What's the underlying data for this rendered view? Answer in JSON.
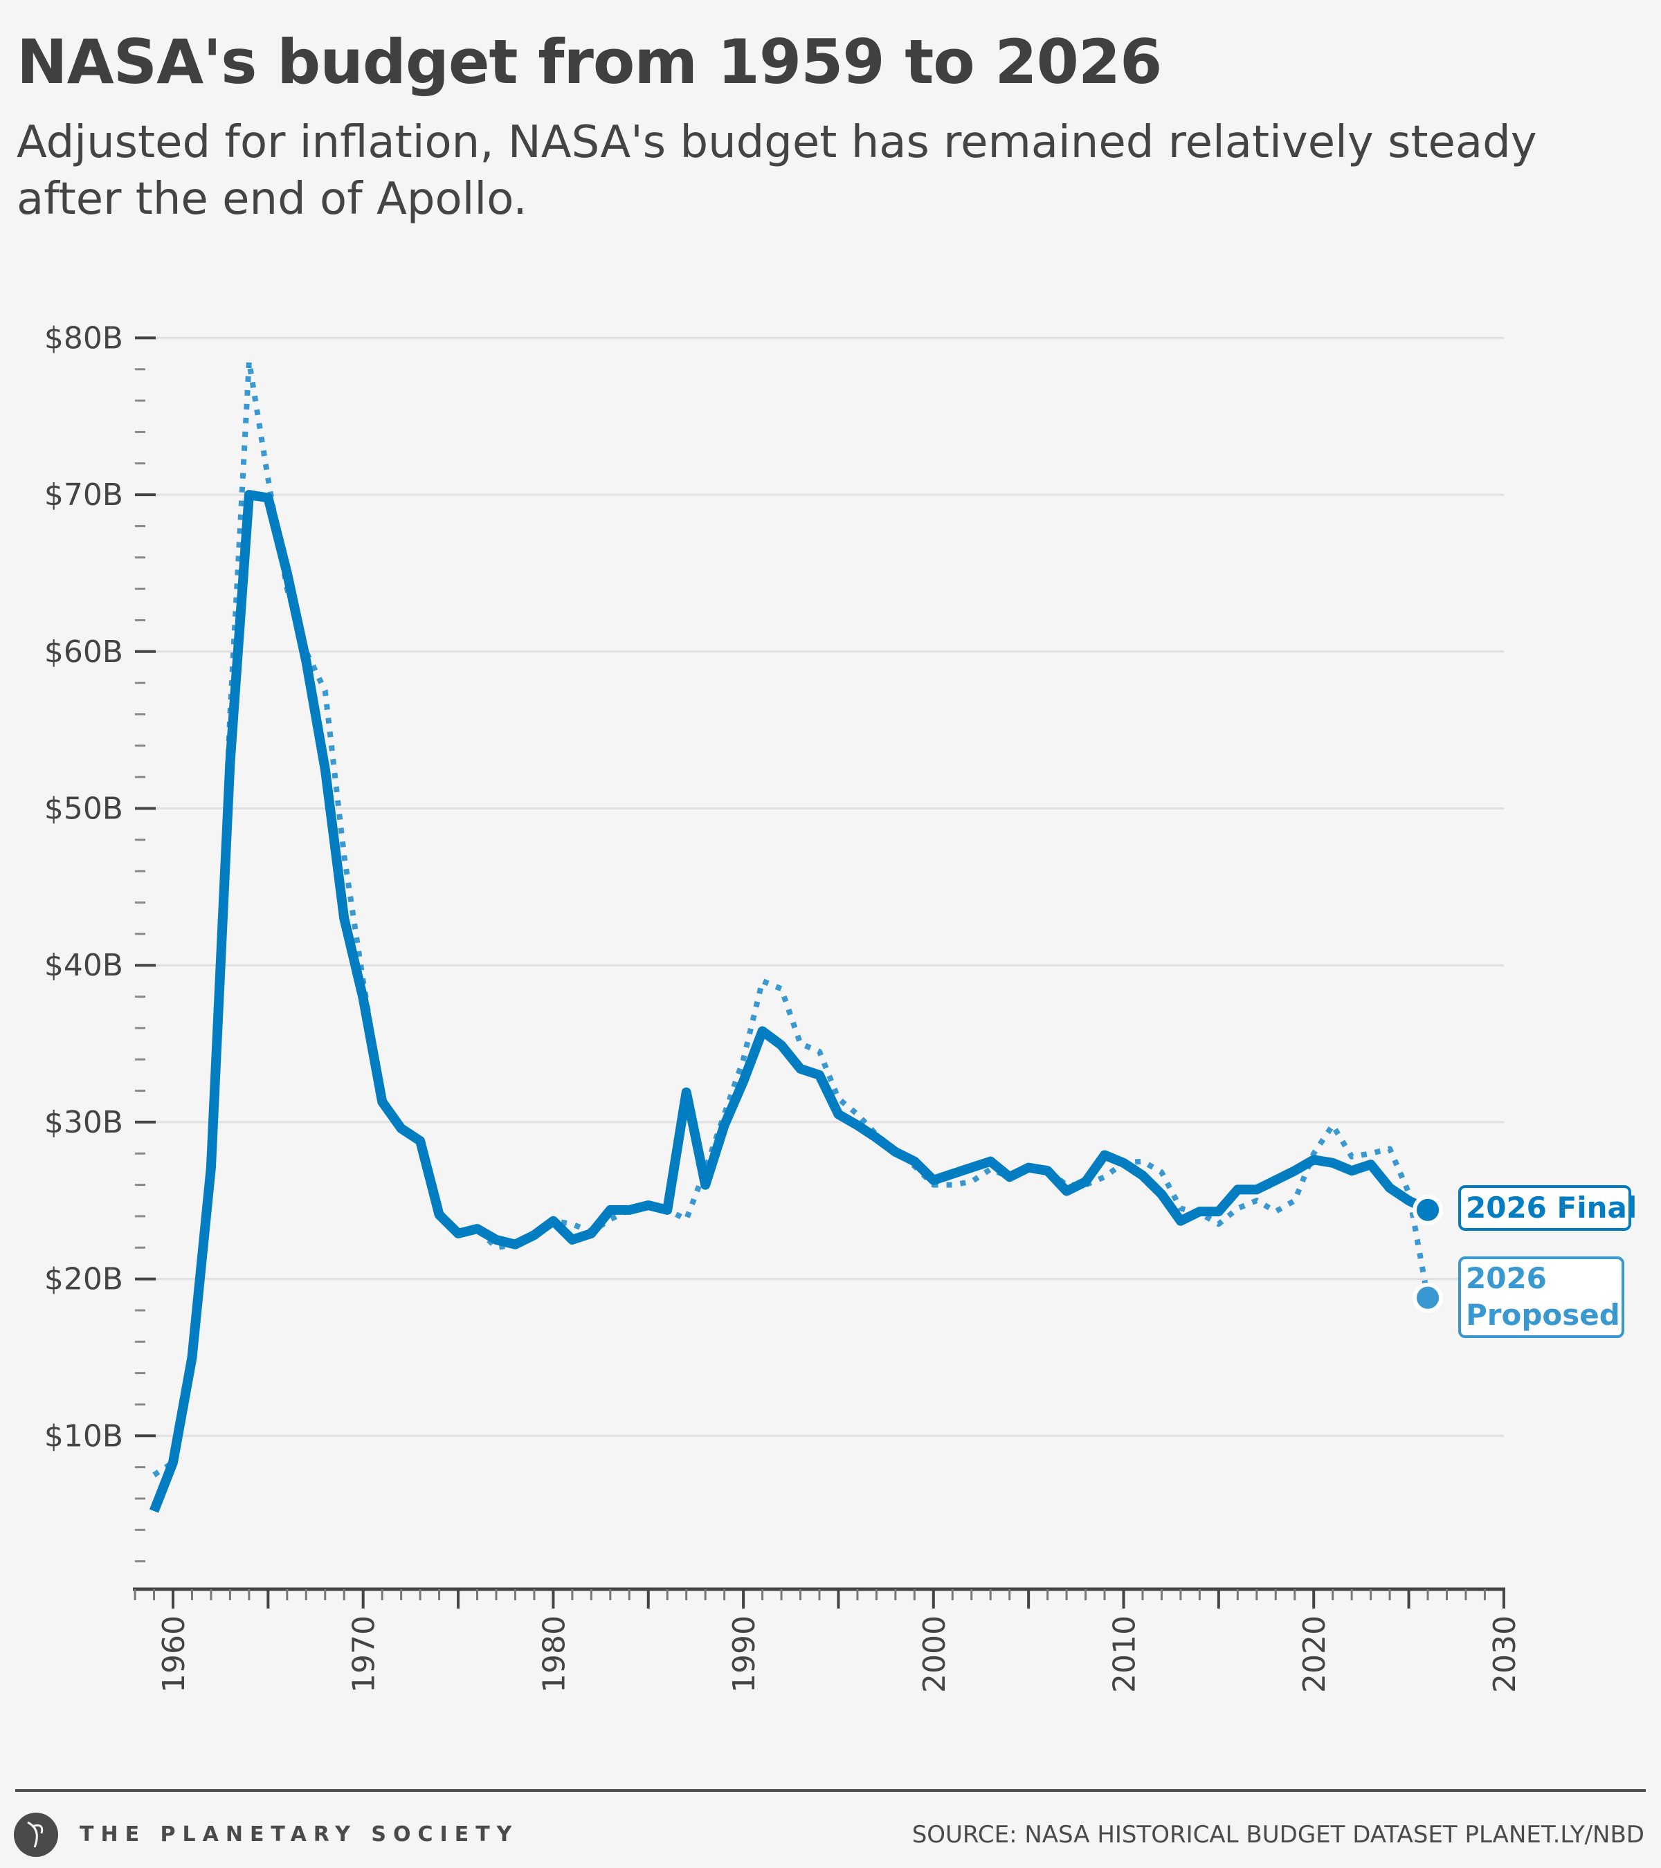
{
  "title": "NASA's budget from 1959 to 2026",
  "subtitle": "Adjusted for inflation, NASA's budget has remained relatively steady after the end of Apollo.",
  "footer": {
    "organization": "THE PLANETARY SOCIETY",
    "source": "SOURCE: NASA HISTORICAL BUDGET DATASET PLANET.LY/NBD"
  },
  "colors": {
    "final": "#037dc1",
    "proposed": "#3a98d0",
    "text": "#444444",
    "grid": "#e0e0e0"
  },
  "chart_data": {
    "type": "line",
    "title": "NASA's budget from 1959 to 2026",
    "xlabel": "",
    "ylabel": "",
    "xlim": [
      1958,
      2030
    ],
    "ylim": [
      0,
      80
    ],
    "x_ticks": [
      "1960",
      "1970",
      "1980",
      "1990",
      "2000",
      "2010",
      "2020",
      "2030"
    ],
    "y_ticks": [
      "$10B",
      "$20B",
      "$30B",
      "$40B",
      "$50B",
      "$60B",
      "$70B",
      "$80B"
    ],
    "grid": true,
    "x": [
      1959,
      1960,
      1961,
      1962,
      1963,
      1964,
      1965,
      1966,
      1967,
      1968,
      1969,
      1970,
      1971,
      1972,
      1973,
      1974,
      1975,
      1976,
      1977,
      1978,
      1979,
      1980,
      1981,
      1982,
      1983,
      1984,
      1985,
      1986,
      1987,
      1988,
      1989,
      1990,
      1991,
      1992,
      1993,
      1994,
      1995,
      1996,
      1997,
      1998,
      1999,
      2000,
      2001,
      2002,
      2003,
      2004,
      2005,
      2006,
      2007,
      2008,
      2009,
      2010,
      2011,
      2012,
      2013,
      2014,
      2015,
      2016,
      2017,
      2018,
      2019,
      2020,
      2021,
      2022,
      2023,
      2024,
      2025,
      2026
    ],
    "series": [
      {
        "name": "Final",
        "style": "solid",
        "values": [
          5.2,
          8.3,
          15,
          27.1,
          52.9,
          70,
          69.8,
          65,
          59.4,
          52.5,
          43,
          37.9,
          31.3,
          29.6,
          28.8,
          24.1,
          22.9,
          23.2,
          22.5,
          22.2,
          22.8,
          23.7,
          22.5,
          22.9,
          24.4,
          24.4,
          24.7,
          24.4,
          31.9,
          26.0,
          29.8,
          32.6,
          35.8,
          34.9,
          33.4,
          33.0,
          30.5,
          29.8,
          29.0,
          28.1,
          27.5,
          26.3,
          26.7,
          27.1,
          27.5,
          26.5,
          27.1,
          26.9,
          25.6,
          26.2,
          27.9,
          27.4,
          26.6,
          25.4,
          23.7,
          24.3,
          24.3,
          25.7,
          25.7,
          26.3,
          26.9,
          27.6,
          27.4,
          26.9,
          27.3,
          25.8,
          25.0,
          24.4
        ]
      },
      {
        "name": "Proposed",
        "style": "dotted",
        "values": [
          7.5,
          8.3,
          15,
          27.1,
          56,
          78.5,
          71,
          64,
          60,
          57.5,
          47,
          39,
          31.5,
          29.6,
          28.8,
          24.1,
          22.9,
          23.2,
          22,
          22.2,
          22.8,
          23.7,
          23.5,
          23,
          23.8,
          24.4,
          24.7,
          24.4,
          23.8,
          27,
          30.5,
          34,
          39,
          38.5,
          35,
          34.5,
          31.5,
          30.5,
          29.2,
          28.2,
          27.2,
          26,
          26,
          26.2,
          27,
          26.5,
          27.1,
          26.9,
          26,
          26,
          26.5,
          27.4,
          27.5,
          26.8,
          24.5,
          24.2,
          23.5,
          24.5,
          25,
          24.3,
          25,
          28,
          29.8,
          27.8,
          28,
          28.3,
          25.5,
          18.8
        ]
      }
    ],
    "annotations": [
      {
        "label": "2026 Final",
        "series": "Final",
        "x": 2026
      },
      {
        "label_line1": "2026",
        "label_line2": "Proposed",
        "series": "Proposed",
        "x": 2026
      }
    ]
  }
}
